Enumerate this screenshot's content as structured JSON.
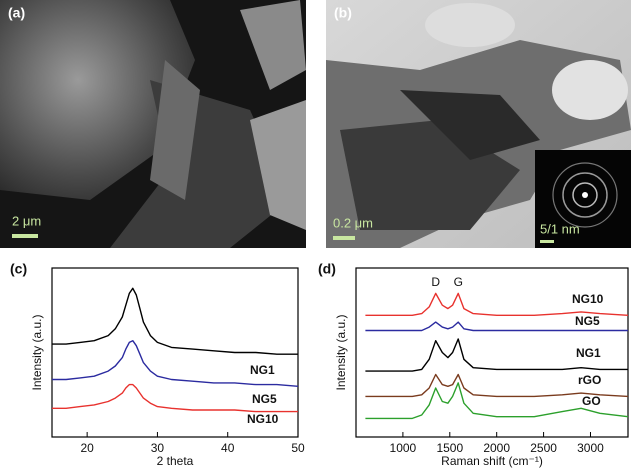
{
  "panels": [
    {
      "label": "(a)",
      "scale_bar": "2 μm"
    },
    {
      "label": "(b)",
      "scale_bar": "0.2 μm",
      "inset_scale_bar": "5/1 nm"
    }
  ],
  "chart_data": [
    {
      "type": "line",
      "panel_label": "(c)",
      "x_label": "2 theta",
      "y_label": "Intensity (a.u.)",
      "x": [
        15,
        17,
        19,
        21,
        23,
        24,
        25,
        25.5,
        26,
        26.5,
        27,
        27.5,
        28,
        29,
        30,
        32,
        35,
        38,
        41,
        44,
        47,
        50
      ],
      "xlim": [
        15,
        50
      ],
      "xticks": [
        20,
        30,
        40,
        50
      ],
      "ylim": [
        0,
        100
      ],
      "series": [
        {
          "name": "NG1",
          "color": "#000000",
          "values": [
            55,
            55,
            56,
            57,
            60,
            64,
            71,
            78,
            85,
            88,
            84,
            76,
            68,
            60,
            56,
            53,
            52,
            51,
            50,
            50,
            49,
            49
          ]
        },
        {
          "name": "NG5",
          "color": "#2b2ba0",
          "values": [
            34,
            34,
            35,
            36,
            39,
            42,
            47,
            52,
            56,
            57,
            54,
            49,
            44,
            39,
            36,
            34,
            33,
            32,
            32,
            31,
            31,
            30
          ]
        },
        {
          "name": "NG10",
          "color": "#e8322e",
          "values": [
            17,
            17,
            18,
            19,
            21,
            23,
            26,
            29,
            31,
            31,
            29,
            26,
            23,
            20,
            18,
            17,
            16,
            16,
            16,
            15,
            15,
            15
          ]
        }
      ]
    },
    {
      "type": "line",
      "panel_label": "(d)",
      "x_label": "Raman shift (cm⁻¹)",
      "y_label": "Intensity (a.u.)",
      "annotations": [
        "D",
        "G"
      ],
      "x": [
        600,
        900,
        1100,
        1200,
        1280,
        1350,
        1420,
        1480,
        1530,
        1590,
        1650,
        1750,
        2000,
        2400,
        2700,
        2900,
        3100,
        3400
      ],
      "xlim": [
        500,
        3400
      ],
      "xticks": [
        1000,
        1500,
        2000,
        2500,
        3000
      ],
      "ylim": [
        0,
        100
      ],
      "series": [
        {
          "name": "NG10",
          "color": "#e8322e",
          "values": [
            72,
            72,
            72,
            73,
            77,
            85,
            78,
            76,
            78,
            85,
            76,
            73,
            72,
            72,
            73,
            74,
            73,
            72
          ]
        },
        {
          "name": "NG5",
          "color": "#2b2ba0",
          "values": [
            63,
            63,
            63,
            63,
            65,
            68,
            65,
            64,
            65,
            68,
            64,
            63,
            63,
            63,
            63,
            63,
            63,
            63
          ]
        },
        {
          "name": "NG1",
          "color": "#000000",
          "values": [
            39,
            39,
            39,
            40,
            46,
            57,
            50,
            47,
            50,
            58,
            46,
            41,
            40,
            40,
            40,
            41,
            40,
            40
          ]
        },
        {
          "name": "rGO",
          "color": "#7a3b1e",
          "values": [
            24,
            24,
            24,
            25,
            29,
            37,
            31,
            30,
            31,
            37,
            29,
            25,
            24,
            24,
            25,
            26,
            25,
            24
          ]
        },
        {
          "name": "GO",
          "color": "#2ca02c",
          "values": [
            11,
            11,
            11,
            13,
            19,
            29,
            21,
            20,
            24,
            32,
            20,
            14,
            12,
            12,
            15,
            17,
            14,
            12
          ]
        }
      ]
    }
  ]
}
